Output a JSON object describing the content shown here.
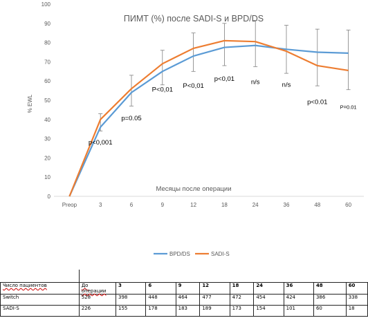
{
  "chart_data": {
    "type": "line",
    "title": "ПИМТ (%) после SADI-S и BPD/DS",
    "xlabel": "Месяцы после операции",
    "ylabel": "% EWL",
    "ylim": [
      0,
      100
    ],
    "yticks": [
      0,
      10,
      20,
      30,
      40,
      50,
      60,
      70,
      80,
      90,
      100
    ],
    "categories": [
      "Preop",
      "3",
      "6",
      "9",
      "12",
      "18",
      "24",
      "36",
      "48",
      "60"
    ],
    "series": [
      {
        "name": "BPD/DS",
        "color": "#5b9bd5",
        "values": [
          0,
          36,
          54,
          65,
          73,
          77.5,
          78.5,
          76.5,
          75,
          74.5
        ]
      },
      {
        "name": "SADI-S",
        "color": "#ed7d31",
        "values": [
          0,
          40,
          56,
          69,
          77,
          81,
          80.5,
          75.5,
          68,
          65.5
        ]
      }
    ],
    "error_bars": [
      {
        "x": "3",
        "low": 34,
        "high": 43
      },
      {
        "x": "6",
        "low": 47,
        "high": 63
      },
      {
        "x": "9",
        "low": 58,
        "high": 76
      },
      {
        "x": "12",
        "low": 65,
        "high": 85
      },
      {
        "x": "18",
        "low": 68,
        "high": 90
      },
      {
        "x": "24",
        "low": 67.5,
        "high": 91.5
      },
      {
        "x": "36",
        "low": 64,
        "high": 89
      },
      {
        "x": "48",
        "low": 57.5,
        "high": 87
      },
      {
        "x": "60",
        "low": 55.5,
        "high": 86.5
      }
    ],
    "annotations": [
      {
        "text": "p<0,001",
        "x": "3",
        "y": 27
      },
      {
        "text": "p=0.05",
        "x": "6",
        "y": 39.5
      },
      {
        "text": "P<0,01",
        "x": "9",
        "y": 54.5
      },
      {
        "text": "P<0,01",
        "x": "12",
        "y": 56.5
      },
      {
        "text": "p<0,01",
        "x": "18",
        "y": 60
      },
      {
        "text": "n/s",
        "x": "24",
        "y": 58.5
      },
      {
        "text": "n/s",
        "x": "36",
        "y": 57
      },
      {
        "text": "p<0.01",
        "x": "48",
        "y": 48
      },
      {
        "text": "P=0.01",
        "x": "60",
        "y": 45.5
      }
    ],
    "grid": false,
    "legend_position": "bottom"
  },
  "table": {
    "rows": [
      [
        "Число пациентов",
        "До операции",
        "3",
        "6",
        "9",
        "12",
        "18",
        "24",
        "36",
        "48",
        "60"
      ],
      [
        "Switch",
        "528",
        "398",
        "448",
        "464",
        "477",
        "472",
        "454",
        "424",
        "386",
        "338"
      ],
      [
        "SADI-S",
        "226",
        "155",
        "178",
        "183",
        "189",
        "173",
        "154",
        "101",
        "60",
        "18"
      ]
    ]
  }
}
